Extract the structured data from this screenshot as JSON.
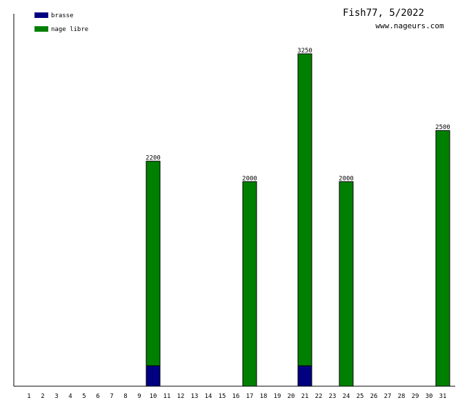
{
  "header": {
    "title": "Fish77, 5/2022",
    "website": "www.nageurs.com"
  },
  "chart_data": {
    "type": "bar",
    "stacked": true,
    "categories": [
      "1",
      "2",
      "3",
      "4",
      "5",
      "6",
      "7",
      "8",
      "9",
      "10",
      "11",
      "12",
      "13",
      "14",
      "15",
      "16",
      "17",
      "18",
      "19",
      "20",
      "21",
      "22",
      "23",
      "24",
      "25",
      "26",
      "27",
      "28",
      "29",
      "30",
      "31"
    ],
    "series": [
      {
        "name": "brasse",
        "color": "#000080",
        "values": [
          0,
          0,
          0,
          0,
          0,
          0,
          0,
          0,
          0,
          200,
          0,
          0,
          0,
          0,
          0,
          0,
          0,
          0,
          0,
          0,
          200,
          0,
          0,
          0,
          0,
          0,
          0,
          0,
          0,
          0,
          0
        ]
      },
      {
        "name": "nage libre",
        "color": "#008000",
        "values": [
          0,
          0,
          0,
          0,
          0,
          0,
          0,
          0,
          0,
          2000,
          0,
          0,
          0,
          0,
          0,
          0,
          2000,
          0,
          0,
          0,
          3050,
          0,
          0,
          2000,
          0,
          0,
          0,
          0,
          0,
          0,
          2500
        ]
      }
    ],
    "totals": [
      0,
      0,
      0,
      0,
      0,
      0,
      0,
      0,
      0,
      2200,
      0,
      0,
      0,
      0,
      0,
      0,
      2000,
      0,
      0,
      0,
      3250,
      0,
      0,
      2000,
      0,
      0,
      0,
      0,
      0,
      0,
      2500
    ],
    "ylim": [
      0,
      3250
    ],
    "grid": false,
    "legend_position": "top-left"
  }
}
